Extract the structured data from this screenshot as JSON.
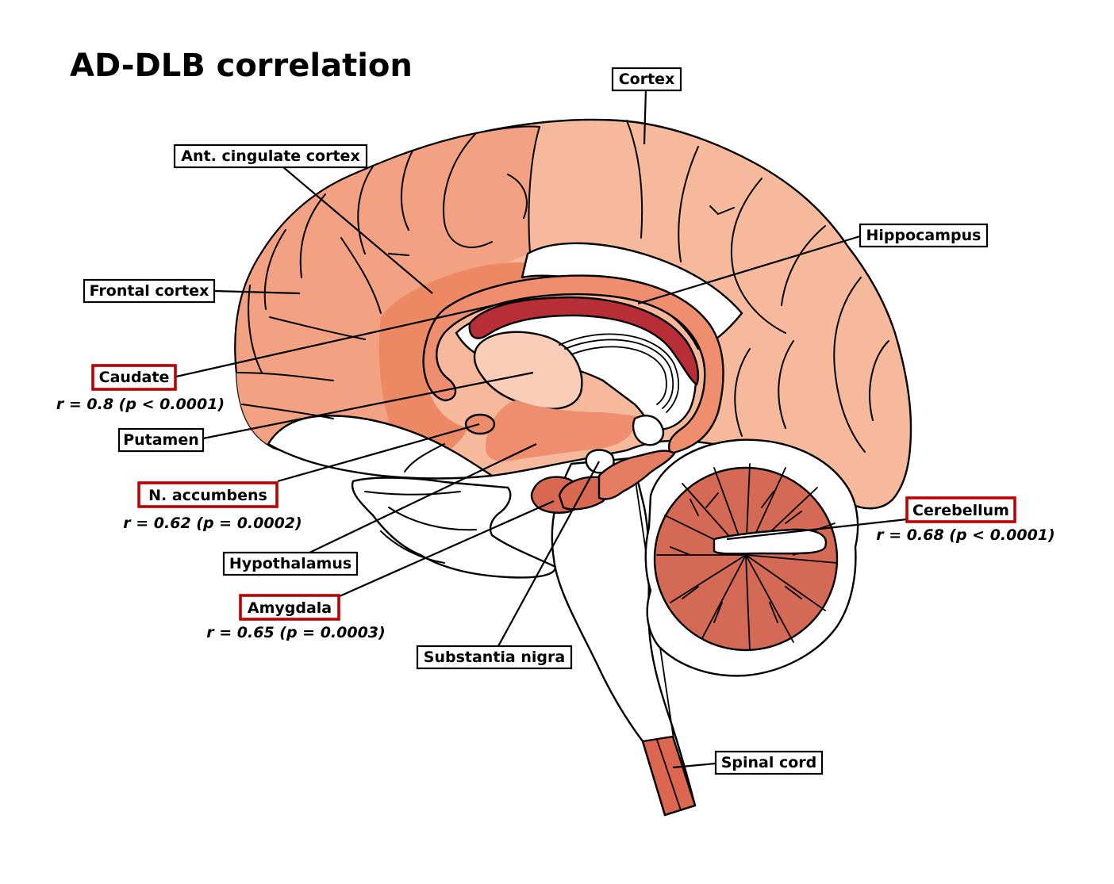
{
  "title": "AD-DLB correlation",
  "colors": {
    "cortex_frontal": "#f2a282",
    "cortex_posterior": "#f7b99c",
    "cingulate": "#ec8864",
    "caudate": "#b82e36",
    "putamen": "#f9cdb8",
    "accumbens": "#eb8c6a",
    "hypothalamus": "#ee8e6e",
    "amygdala": "#d8684f",
    "cerebellum": "#d46a56",
    "spinal_cord": "#dd6650",
    "significant_box_border": "#c00000"
  },
  "regions": {
    "cortex": {
      "label": "Cortex"
    },
    "cingulate": {
      "label": "Ant. cingulate cortex"
    },
    "frontal": {
      "label": "Frontal cortex"
    },
    "hippocampus": {
      "label": "Hippocampus"
    },
    "caudate": {
      "label": "Caudate",
      "stat": "r = 0.8 (p < 0.0001)",
      "significant": true
    },
    "putamen": {
      "label": "Putamen"
    },
    "accumbens": {
      "label": "N. accumbens",
      "stat": "r = 0.62 (p = 0.0002)",
      "significant": true
    },
    "hypothalamus": {
      "label": "Hypothalamus"
    },
    "amygdala": {
      "label": "Amygdala",
      "stat": "r = 0.65 (p = 0.0003)",
      "significant": true
    },
    "substantia_nigra": {
      "label": "Substantia nigra"
    },
    "cerebellum": {
      "label": "Cerebellum",
      "stat": "r = 0.68 (p < 0.0001)",
      "significant": true
    },
    "spinal_cord": {
      "label": "Spinal cord"
    }
  }
}
